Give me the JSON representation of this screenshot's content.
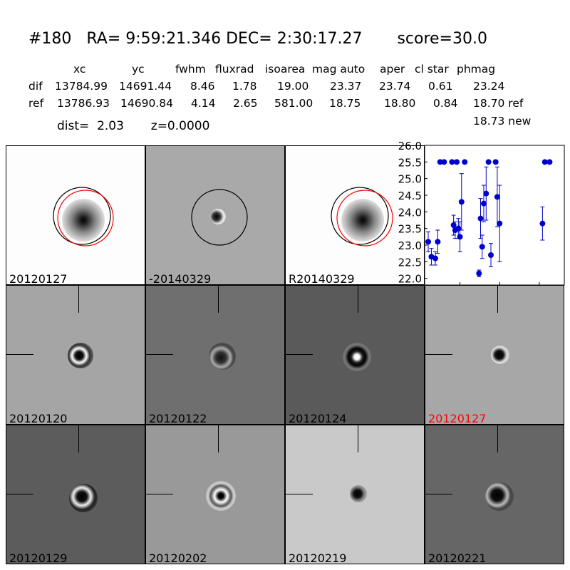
{
  "header": {
    "title": "#180   RA= 9:59:21.346 DEC= 2:30:17.27       score=30.0",
    "columns": [
      "xc",
      "yc",
      "fwhm",
      "fluxrad",
      "isoarea",
      "mag auto",
      "aper",
      "cl star",
      "phmag"
    ],
    "dif_row": [
      "dif",
      "13784.99",
      "14691.44",
      "8.46",
      "1.78",
      "19.00",
      "23.37",
      "23.74",
      "0.61",
      "23.24"
    ],
    "ref_row": [
      "ref",
      "13786.93",
      "14690.84",
      "4.14",
      "2.65",
      "581.00",
      "18.75",
      "18.80",
      "0.84",
      "18.70 ref"
    ],
    "new_phmag": "18.73 new",
    "dist_line": "dist=  2.03       z=0.0000"
  },
  "panels": [
    {
      "label": "20120127",
      "bg": "#fdfdfd",
      "label_color": "#000000"
    },
    {
      "label": "-20140329",
      "bg": "#a9a9a9",
      "label_color": "#000000"
    },
    {
      "label": "R20140329",
      "bg": "#fdfdfd",
      "label_color": "#000000"
    },
    {
      "label": "20120120",
      "bg": "#a5a5a5",
      "label_color": "#000000"
    },
    {
      "label": "20120122",
      "bg": "#6f6f6f",
      "label_color": "#000000"
    },
    {
      "label": "20120124",
      "bg": "#5a5a5a",
      "label_color": "#000000"
    },
    {
      "label": "20120127",
      "bg": "#a7a7a7",
      "label_color": "#ff0000"
    },
    {
      "label": "20120129",
      "bg": "#5c5c5c",
      "label_color": "#000000"
    },
    {
      "label": "20120202",
      "bg": "#999999",
      "label_color": "#000000"
    },
    {
      "label": "20120219",
      "bg": "#c9c9c9",
      "label_color": "#000000"
    },
    {
      "label": "20120221",
      "bg": "#666666",
      "label_color": "#000000"
    }
  ],
  "chart_data": {
    "type": "scatter",
    "ylim": [
      26.0,
      21.8
    ],
    "xlim": [
      -40,
      127
    ],
    "yticks": [
      "22.0",
      "22.5",
      "23.0",
      "23.5",
      "24.0",
      "24.5",
      "25.0",
      "25.5",
      "26.0"
    ],
    "xticks": [
      "0",
      "50",
      "100"
    ],
    "marker_color": "#0000cc",
    "points": [
      {
        "x": -40,
        "y": 23.1,
        "err": 0.3
      },
      {
        "x": -36,
        "y": 22.65,
        "err": 0.25
      },
      {
        "x": -31,
        "y": 22.6,
        "err": 0.2
      },
      {
        "x": -28,
        "y": 23.1,
        "err": 0.35
      },
      {
        "x": -25,
        "y": 25.5,
        "err": 0
      },
      {
        "x": -20,
        "y": 25.5,
        "err": 0
      },
      {
        "x": -10,
        "y": 25.5,
        "err": 0
      },
      {
        "x": -8,
        "y": 23.6,
        "err": 0.3
      },
      {
        "x": -6,
        "y": 23.45,
        "err": 0.25
      },
      {
        "x": -4,
        "y": 25.5,
        "err": 0
      },
      {
        "x": -2,
        "y": 23.5,
        "err": 0.3
      },
      {
        "x": 0,
        "y": 23.25,
        "err": 0.45
      },
      {
        "x": 2,
        "y": 24.3,
        "err": 0.85
      },
      {
        "x": 6,
        "y": 25.5,
        "err": 0
      },
      {
        "x": 24,
        "y": 22.15,
        "err": 0.1
      },
      {
        "x": 26,
        "y": 23.8,
        "err": 0.6
      },
      {
        "x": 28,
        "y": 22.95,
        "err": 0.35
      },
      {
        "x": 30,
        "y": 24.25,
        "err": 0.55
      },
      {
        "x": 33,
        "y": 24.55,
        "err": 0.8
      },
      {
        "x": 36,
        "y": 25.5,
        "err": 0
      },
      {
        "x": 39,
        "y": 22.7,
        "err": 0.35
      },
      {
        "x": 45,
        "y": 25.5,
        "err": 0
      },
      {
        "x": 47,
        "y": 24.45,
        "err": 0.9
      },
      {
        "x": 50,
        "y": 23.65,
        "err": 1.15
      },
      {
        "x": 104,
        "y": 23.65,
        "err": 0.5
      },
      {
        "x": 107,
        "y": 25.5,
        "err": 0
      },
      {
        "x": 113,
        "y": 25.5,
        "err": 0
      }
    ]
  }
}
